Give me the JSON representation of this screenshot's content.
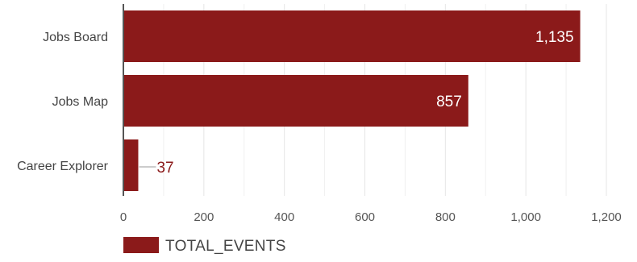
{
  "chart_data": {
    "type": "bar",
    "orientation": "horizontal",
    "categories": [
      "Jobs Board",
      "Jobs Map",
      "Career Explorer"
    ],
    "series": [
      {
        "name": "TOTAL_EVENTS",
        "values": [
          1135,
          857,
          37
        ],
        "value_labels": [
          "1,135",
          "857",
          "37"
        ]
      }
    ],
    "x_ticks": [
      0,
      200,
      400,
      600,
      800,
      1000,
      1200
    ],
    "x_tick_labels": [
      "0",
      "200",
      "400",
      "600",
      "800",
      "1,000",
      "1,200"
    ],
    "xlim": [
      0,
      1200
    ],
    "grid": true,
    "legend_position": "bottom-left",
    "colors": {
      "bar": "#8b1a1a",
      "grid": "#e6e6e6",
      "axis": "#555555",
      "leader": "#999999"
    }
  }
}
